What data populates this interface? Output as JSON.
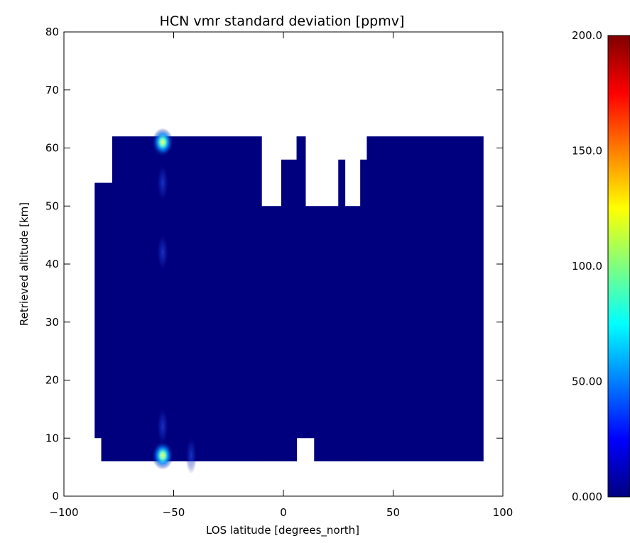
{
  "chart_data": [
    {
      "type": "heatmap",
      "title": "HCN vmr standard deviation [ppmv]",
      "xlabel": "LOS latitude [degrees_north]",
      "ylabel": "Retrieved altitude [km]",
      "xlim": [
        -100,
        100
      ],
      "ylim": [
        0,
        80
      ],
      "xticks": [
        "−100",
        "−50",
        "0",
        "50",
        "100"
      ],
      "yticks": [
        "0",
        "10",
        "20",
        "30",
        "40",
        "50",
        "60",
        "70",
        "80"
      ],
      "grid": false,
      "background_value_ppmv": 0,
      "data_columns": [
        {
          "lat": [
            -86,
            -83
          ],
          "alt": [
            10,
            54
          ]
        },
        {
          "lat": [
            -83,
            -78
          ],
          "alt": [
            6,
            54
          ]
        },
        {
          "lat": [
            -78,
            -10
          ],
          "alt": [
            6,
            62
          ]
        },
        {
          "lat": [
            -10,
            -1
          ],
          "alt": [
            6,
            50
          ]
        },
        {
          "lat": [
            -1,
            6
          ],
          "alt": [
            6,
            58
          ]
        },
        {
          "lat": [
            6,
            10
          ],
          "alt": [
            10,
            62
          ]
        },
        {
          "lat": [
            10,
            14
          ],
          "alt": [
            10,
            50
          ]
        },
        {
          "lat": [
            14,
            22
          ],
          "alt": [
            6,
            50
          ]
        },
        {
          "lat": [
            22,
            25
          ],
          "alt": [
            6,
            50
          ]
        },
        {
          "lat": [
            25,
            28
          ],
          "alt": [
            6,
            58
          ]
        },
        {
          "lat": [
            28,
            35
          ],
          "alt": [
            6,
            50
          ]
        },
        {
          "lat": [
            35,
            38
          ],
          "alt": [
            6,
            58
          ]
        },
        {
          "lat": [
            38,
            91
          ],
          "alt": [
            6,
            62
          ]
        }
      ],
      "hotspots": [
        {
          "lat": -55,
          "alt": 7,
          "value_ppmv": 120
        },
        {
          "lat": -55,
          "alt": 61,
          "value_ppmv": 90
        },
        {
          "lat": -55,
          "alt": 54,
          "value_ppmv": 25
        },
        {
          "lat": -55,
          "alt": 12,
          "value_ppmv": 20
        },
        {
          "lat": -55,
          "alt": 42,
          "value_ppmv": 12
        },
        {
          "lat": -42,
          "alt": 7,
          "value_ppmv": 15
        }
      ]
    },
    {
      "type": "colorbar",
      "range": [
        0,
        200
      ],
      "tick_labels": [
        "0.000",
        "50.00",
        "100.0",
        "150.0",
        "200.0"
      ],
      "tick_values": [
        0,
        50,
        100,
        150,
        200
      ],
      "colormap": [
        "#00007f",
        "#0000ff",
        "#007fff",
        "#00ffff",
        "#7fff7f",
        "#ffff00",
        "#ff7f00",
        "#ff0000",
        "#7f0000"
      ]
    }
  ]
}
